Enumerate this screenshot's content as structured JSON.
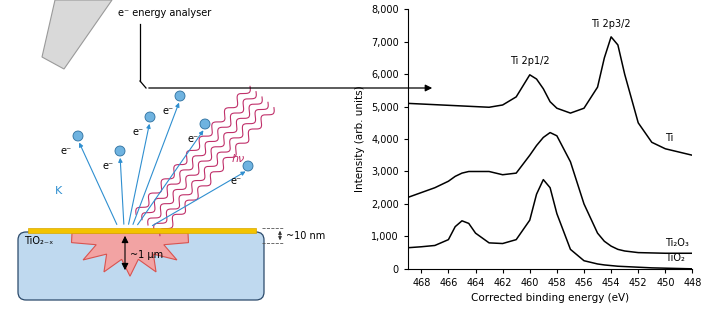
{
  "chart_data": {
    "type": "line",
    "x_label": "Corrected binding energy (eV)",
    "y_label": "Intensity (arb. units)",
    "x": [
      469,
      468,
      467,
      466,
      465.5,
      465,
      464.5,
      464,
      463,
      462,
      461,
      460,
      459.5,
      459,
      458.5,
      458,
      457,
      456,
      455,
      454.5,
      454,
      453.5,
      453,
      452,
      451,
      450,
      449,
      448
    ],
    "xlim": [
      469,
      448
    ],
    "xticks": [
      468,
      466,
      464,
      462,
      460,
      458,
      456,
      454,
      452,
      450,
      448
    ],
    "ylim": [
      0,
      8000
    ],
    "yticks": [
      0,
      {
        "value": 1000,
        "label": "1,000"
      },
      {
        "value": 2000,
        "label": "2,000"
      },
      {
        "value": 3000,
        "label": "3,000"
      },
      {
        "value": 4000,
        "label": "4,000"
      },
      {
        "value": 5000,
        "label": "5,000"
      },
      {
        "value": 6000,
        "label": "6,000"
      },
      {
        "value": 7000,
        "label": "7,000"
      },
      {
        "value": 8000,
        "label": "8,000"
      }
    ],
    "grid": false,
    "series": [
      {
        "name": "Ti",
        "color": "#000000",
        "values": [
          5100,
          5080,
          5060,
          5040,
          5030,
          5020,
          5010,
          5000,
          4980,
          5050,
          5300,
          5980,
          5850,
          5550,
          5150,
          4950,
          4800,
          4950,
          5600,
          6500,
          7150,
          6900,
          6000,
          4500,
          3900,
          3700,
          3600,
          3500
        ]
      },
      {
        "name": "Ti₂O₃",
        "color": "#000000",
        "values": [
          2200,
          2350,
          2500,
          2700,
          2850,
          2950,
          3000,
          3000,
          3000,
          2900,
          2950,
          3500,
          3800,
          4050,
          4200,
          4100,
          3300,
          2000,
          1100,
          850,
          700,
          600,
          550,
          500,
          490,
          480,
          480,
          480
        ]
      },
      {
        "name": "TiO₂",
        "color": "#000000",
        "values": [
          650,
          680,
          720,
          900,
          1300,
          1480,
          1400,
          1100,
          800,
          780,
          900,
          1500,
          2300,
          2750,
          2500,
          1700,
          600,
          250,
          150,
          120,
          100,
          80,
          70,
          50,
          30,
          20,
          10,
          0
        ]
      }
    ],
    "annotations": [
      {
        "text": "Ti 2p1/2",
        "x": 460,
        "y": 6250
      },
      {
        "text": "Ti 2p3/2",
        "x": 454,
        "y": 7400
      }
    ]
  },
  "diagram": {
    "analyser_label": "e⁻ energy analyser",
    "electron_labels": [
      "e⁻",
      "e⁻",
      "e⁻",
      "e⁻",
      "e⁻",
      "e⁻"
    ],
    "kinetic_energy_label": "K",
    "photon_label": "hν",
    "sample_label": "TiO₂₋ₓ",
    "depth_label": "~1 μm",
    "layer_label": "~10 nm"
  }
}
